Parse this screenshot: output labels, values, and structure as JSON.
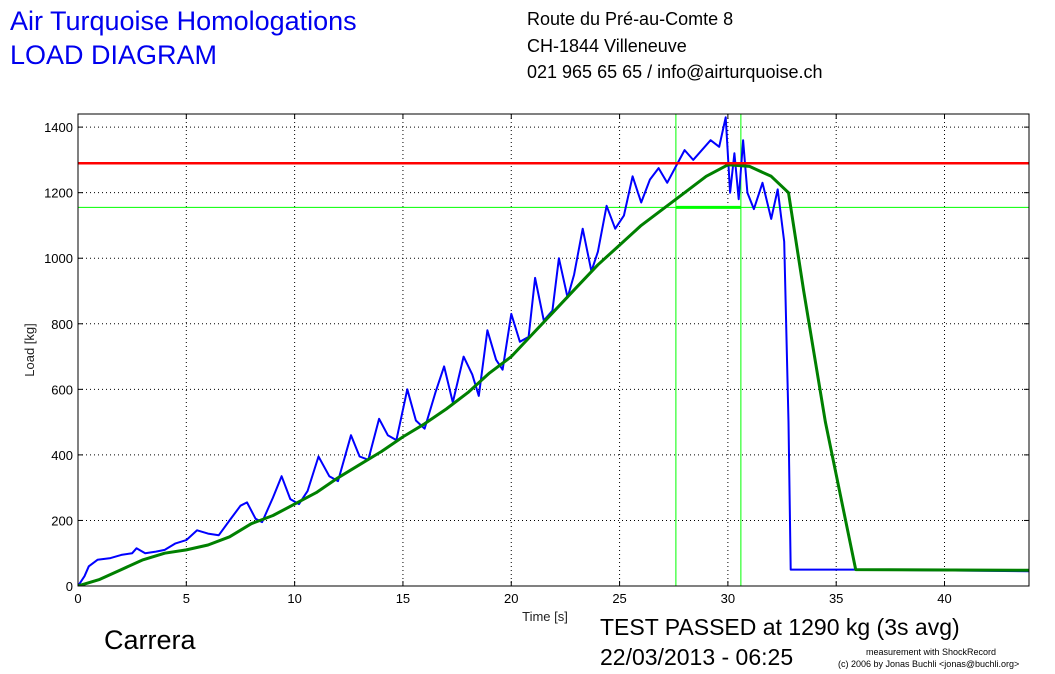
{
  "header": {
    "title_line1": "Air Turquoise Homologations",
    "title_line2": "LOAD DIAGRAM",
    "address_line1": "Route du Pré-au-Comte 8",
    "address_line2": "CH-1844 Villeneuve",
    "address_line3": "021 965 65 65 / info@airturquoise.ch"
  },
  "footer": {
    "sample_name": "Carrera",
    "result": "TEST PASSED at 1290 kg (3s avg)",
    "datetime": "22/03/2013 - 06:25",
    "credit_line1": "measurement with ShockRecord",
    "credit_line2": "(c) 2006 by Jonas Buchli <jonas@buchli.org>"
  },
  "colors": {
    "raw": "#0000ff",
    "avg": "#008000",
    "limit": "#ff0000",
    "marker": "#00ff00"
  },
  "chart_data": {
    "type": "line",
    "xlabel": "Time [s]",
    "ylabel": "Load [kg]",
    "xlim": [
      0,
      43.9
    ],
    "ylim": [
      0,
      1440
    ],
    "xticks": [
      0,
      5,
      10,
      15,
      20,
      25,
      30,
      35,
      40
    ],
    "yticks": [
      0,
      200,
      400,
      600,
      800,
      1000,
      1200,
      1400
    ],
    "grid": true,
    "series": [
      {
        "key": "raw",
        "points": [
          [
            0,
            0
          ],
          [
            0.3,
            30
          ],
          [
            0.5,
            60
          ],
          [
            0.9,
            80
          ],
          [
            1.5,
            85
          ],
          [
            2.0,
            95
          ],
          [
            2.5,
            100
          ],
          [
            2.7,
            115
          ],
          [
            3.1,
            100
          ],
          [
            3.6,
            105
          ],
          [
            4.0,
            110
          ],
          [
            4.5,
            130
          ],
          [
            5.0,
            140
          ],
          [
            5.5,
            170
          ],
          [
            6.0,
            160
          ],
          [
            6.5,
            155
          ],
          [
            7.0,
            200
          ],
          [
            7.5,
            245
          ],
          [
            7.8,
            255
          ],
          [
            8.2,
            205
          ],
          [
            8.5,
            195
          ],
          [
            9.0,
            270
          ],
          [
            9.4,
            335
          ],
          [
            9.8,
            265
          ],
          [
            10.2,
            250
          ],
          [
            10.6,
            290
          ],
          [
            11.1,
            395
          ],
          [
            11.6,
            335
          ],
          [
            12.0,
            320
          ],
          [
            12.6,
            460
          ],
          [
            13.0,
            395
          ],
          [
            13.4,
            385
          ],
          [
            13.9,
            510
          ],
          [
            14.3,
            460
          ],
          [
            14.7,
            445
          ],
          [
            15.2,
            600
          ],
          [
            15.6,
            505
          ],
          [
            16.0,
            480
          ],
          [
            16.5,
            590
          ],
          [
            16.9,
            670
          ],
          [
            17.3,
            560
          ],
          [
            17.8,
            700
          ],
          [
            18.2,
            645
          ],
          [
            18.5,
            580
          ],
          [
            18.9,
            780
          ],
          [
            19.3,
            690
          ],
          [
            19.6,
            660
          ],
          [
            20.0,
            830
          ],
          [
            20.4,
            745
          ],
          [
            20.8,
            760
          ],
          [
            21.1,
            940
          ],
          [
            21.5,
            810
          ],
          [
            21.9,
            840
          ],
          [
            22.2,
            1000
          ],
          [
            22.6,
            880
          ],
          [
            22.9,
            950
          ],
          [
            23.3,
            1090
          ],
          [
            23.7,
            960
          ],
          [
            24.0,
            1020
          ],
          [
            24.4,
            1160
          ],
          [
            24.8,
            1090
          ],
          [
            25.2,
            1130
          ],
          [
            25.6,
            1250
          ],
          [
            26.0,
            1170
          ],
          [
            26.4,
            1240
          ],
          [
            26.8,
            1275
          ],
          [
            27.2,
            1230
          ],
          [
            27.6,
            1280
          ],
          [
            28.0,
            1330
          ],
          [
            28.4,
            1300
          ],
          [
            28.8,
            1330
          ],
          [
            29.2,
            1360
          ],
          [
            29.6,
            1340
          ],
          [
            29.9,
            1430
          ],
          [
            30.1,
            1200
          ],
          [
            30.3,
            1320
          ],
          [
            30.5,
            1180
          ],
          [
            30.7,
            1360
          ],
          [
            30.9,
            1200
          ],
          [
            31.2,
            1150
          ],
          [
            31.6,
            1230
          ],
          [
            32.0,
            1120
          ],
          [
            32.3,
            1210
          ],
          [
            32.6,
            1050
          ],
          [
            32.8,
            500
          ],
          [
            32.9,
            50
          ],
          [
            33.5,
            50
          ],
          [
            36,
            50
          ],
          [
            43.9,
            45
          ]
        ]
      },
      {
        "key": "avg",
        "points": [
          [
            0,
            0
          ],
          [
            1,
            20
          ],
          [
            2,
            50
          ],
          [
            3,
            80
          ],
          [
            4,
            100
          ],
          [
            5,
            110
          ],
          [
            6,
            125
          ],
          [
            7,
            150
          ],
          [
            8,
            190
          ],
          [
            9,
            215
          ],
          [
            10,
            250
          ],
          [
            11,
            285
          ],
          [
            12,
            330
          ],
          [
            13,
            370
          ],
          [
            14,
            410
          ],
          [
            15,
            455
          ],
          [
            16,
            495
          ],
          [
            17,
            540
          ],
          [
            18,
            590
          ],
          [
            19,
            650
          ],
          [
            20,
            700
          ],
          [
            21,
            770
          ],
          [
            22,
            840
          ],
          [
            23,
            910
          ],
          [
            24,
            980
          ],
          [
            25,
            1040
          ],
          [
            26,
            1100
          ],
          [
            27,
            1150
          ],
          [
            28,
            1200
          ],
          [
            29,
            1250
          ],
          [
            30,
            1285
          ],
          [
            31,
            1280
          ],
          [
            32,
            1250
          ],
          [
            32.8,
            1200
          ],
          [
            33.5,
            900
          ],
          [
            34.5,
            500
          ],
          [
            35.9,
            50
          ],
          [
            43.9,
            48
          ]
        ]
      },
      {
        "key": "limit",
        "points": [
          [
            0,
            1290
          ],
          [
            43.9,
            1290
          ]
        ]
      }
    ],
    "markers": {
      "vertical_times": [
        27.6,
        30.6
      ],
      "horizontal_load": 1155,
      "segment": [
        [
          27.6,
          1155
        ],
        [
          30.6,
          1155
        ]
      ]
    }
  }
}
